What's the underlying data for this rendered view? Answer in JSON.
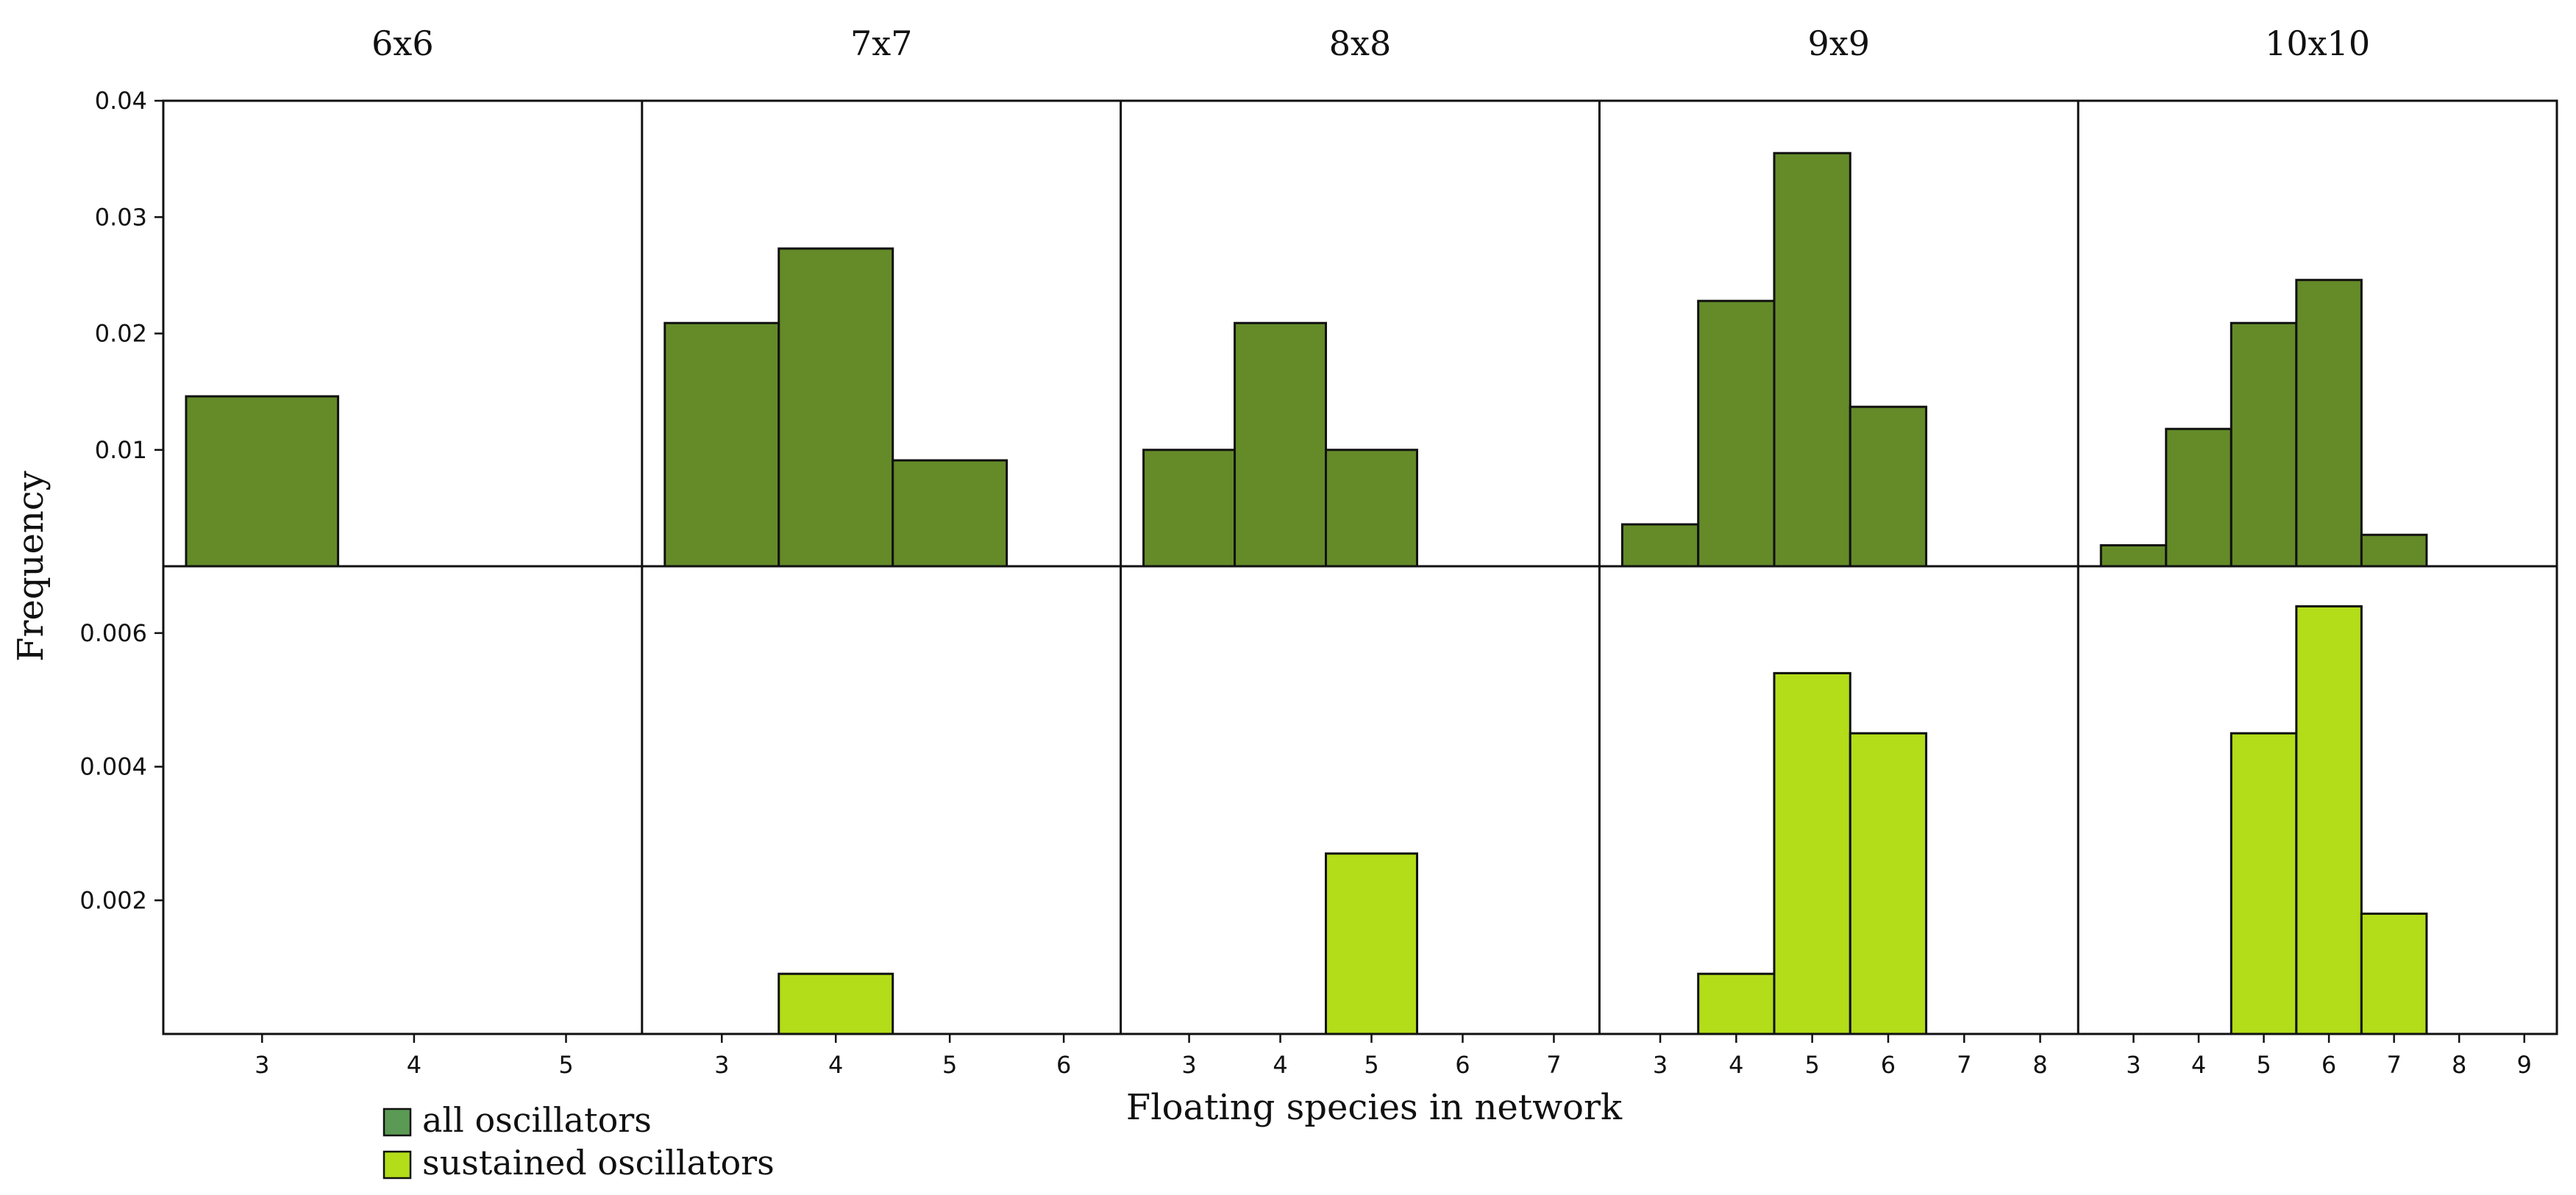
{
  "chart_data": {
    "type": "bar",
    "ylabel": "Frequency",
    "xlabel": "Floating species in network",
    "colors": {
      "all": "#648b28",
      "sustained": "#b2dd18",
      "edge": "#111111"
    },
    "legend": {
      "position": "bottom-left",
      "entries": [
        {
          "key": "all",
          "label": "all oscillators",
          "swatch": "#5a9a54"
        },
        {
          "key": "sustained",
          "label": "sustained oscillators",
          "swatch": "#b2dd18"
        }
      ]
    },
    "top_ylim": [
      0,
      0.04
    ],
    "top_yticks": [
      "0.01",
      "0.02",
      "0.03",
      "0.04"
    ],
    "bottom_ylim": [
      0,
      0.007
    ],
    "bottom_yticks": [
      "0.002",
      "0.004",
      "0.006"
    ],
    "panels": [
      {
        "title": "6x6",
        "xlim": [
          2.35,
          5.5
        ],
        "xticks": [
          "3",
          "4",
          "5"
        ],
        "all": [
          {
            "x": 3,
            "y": 0.0146
          }
        ],
        "sustained": []
      },
      {
        "title": "7x7",
        "xlim": [
          2.3,
          6.5
        ],
        "xticks": [
          "3",
          "4",
          "5",
          "6"
        ],
        "all": [
          {
            "x": 3,
            "y": 0.0209
          },
          {
            "x": 4,
            "y": 0.0273
          },
          {
            "x": 5,
            "y": 0.0091
          }
        ],
        "sustained": [
          {
            "x": 4,
            "y": 0.0009
          }
        ]
      },
      {
        "title": "8x8",
        "xlim": [
          2.25,
          7.5
        ],
        "xticks": [
          "3",
          "4",
          "5",
          "6",
          "7"
        ],
        "all": [
          {
            "x": 3,
            "y": 0.01
          },
          {
            "x": 4,
            "y": 0.0209
          },
          {
            "x": 5,
            "y": 0.01
          }
        ],
        "sustained": [
          {
            "x": 5,
            "y": 0.0027
          }
        ]
      },
      {
        "title": "9x9",
        "xlim": [
          2.2,
          8.5
        ],
        "xticks": [
          "3",
          "4",
          "5",
          "6",
          "7",
          "8"
        ],
        "all": [
          {
            "x": 3,
            "y": 0.0036
          },
          {
            "x": 4,
            "y": 0.0228
          },
          {
            "x": 5,
            "y": 0.0355
          },
          {
            "x": 6,
            "y": 0.0137
          }
        ],
        "sustained": [
          {
            "x": 4,
            "y": 0.0009
          },
          {
            "x": 5,
            "y": 0.0054
          },
          {
            "x": 6,
            "y": 0.0045
          }
        ]
      },
      {
        "title": "10x10",
        "xlim": [
          2.15,
          9.5
        ],
        "xticks": [
          "3",
          "4",
          "5",
          "6",
          "7",
          "8",
          "9"
        ],
        "all": [
          {
            "x": 3,
            "y": 0.0018
          },
          {
            "x": 4,
            "y": 0.0118
          },
          {
            "x": 5,
            "y": 0.0209
          },
          {
            "x": 6,
            "y": 0.0246
          },
          {
            "x": 7,
            "y": 0.0027
          }
        ],
        "sustained": [
          {
            "x": 5,
            "y": 0.0045
          },
          {
            "x": 6,
            "y": 0.0064
          },
          {
            "x": 7,
            "y": 0.0018
          }
        ]
      }
    ]
  }
}
